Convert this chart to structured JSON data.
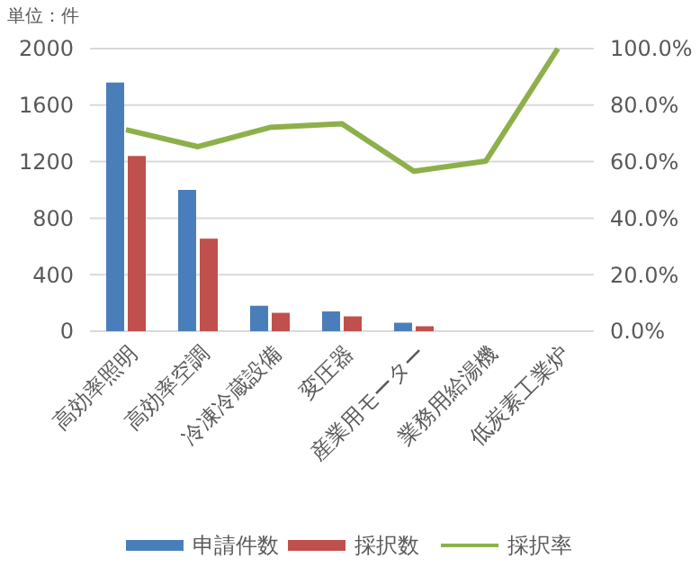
{
  "chart_data": {
    "type": "bar",
    "annotations": [
      "単位：件"
    ],
    "categories": [
      "高効率照明",
      "高効率空調",
      "冷凍冷蔵設備",
      "変圧器",
      "産業用モーター",
      "業務用給湯機",
      "低炭素工業炉"
    ],
    "series": [
      {
        "name": "申請件数",
        "color": "#4a7ebb",
        "values": [
          1760,
          1000,
          180,
          140,
          60,
          0,
          0
        ]
      },
      {
        "name": "採択数",
        "color": "#c0504d",
        "values": [
          1240,
          655,
          130,
          105,
          35,
          0,
          0
        ]
      },
      {
        "name": "採択率",
        "type": "line",
        "axis": "y2",
        "color": "#8db04a",
        "values": [
          71.3,
          65.3,
          72.1,
          73.4,
          56.6,
          60.2,
          100
        ]
      }
    ],
    "ylim": [
      0,
      2000
    ],
    "yticks": [
      0,
      400,
      800,
      1200,
      1600,
      2000
    ],
    "y2lim": [
      0,
      100
    ],
    "y2ticks": [
      {
        "value": 0,
        "label": "0.0%"
      },
      {
        "value": 20,
        "label": "20.0%"
      },
      {
        "value": 40,
        "label": "40.0%"
      },
      {
        "value": 60,
        "label": "60.0%"
      },
      {
        "value": 80,
        "label": "80.0%"
      },
      {
        "value": 100,
        "label": "100.0%"
      }
    ],
    "grid": "y",
    "legend": "bottom",
    "marker": "none"
  }
}
